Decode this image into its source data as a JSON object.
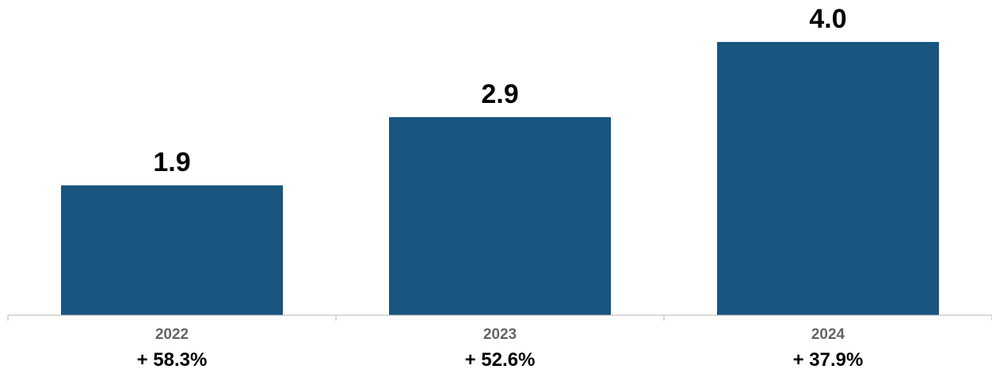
{
  "chart_data": {
    "type": "bar",
    "categories": [
      "2022",
      "2023",
      "2024"
    ],
    "values": [
      1.9,
      2.9,
      4.0
    ],
    "value_labels": [
      "1.9",
      "2.9",
      "4.0"
    ],
    "growth_labels": [
      "+ 58.3%",
      "+ 52.6%",
      "+ 37.9%"
    ],
    "title": "",
    "xlabel": "",
    "ylabel": "",
    "ylim": [
      0,
      4.5
    ],
    "grid": false,
    "legend": "none"
  },
  "colors": {
    "bar": "#18567f",
    "axis": "#b3b3b3",
    "category_label": "#666666",
    "value_label": "#000000",
    "growth_label": "#000000"
  }
}
